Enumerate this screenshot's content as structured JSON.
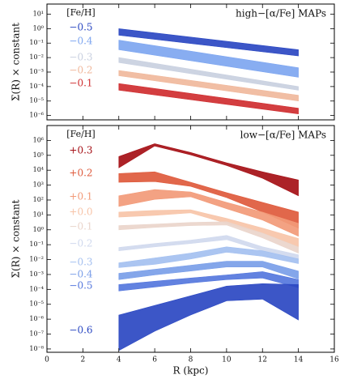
{
  "chart_data": [
    {
      "type": "band",
      "annotation": "high−[α/Fe] MAPs",
      "legend_title": "[Fe/H]",
      "ylabel": "Σ(R) × constant",
      "log_y": true,
      "xlim": [
        0,
        16
      ],
      "xticks": [
        0,
        2,
        4,
        6,
        8,
        10,
        12,
        14,
        16
      ],
      "ylim": [
        5e-07,
        50
      ],
      "yticks": [
        {
          "value": 1e-06,
          "label": "10⁻⁶"
        },
        {
          "value": 1e-05,
          "label": "10⁻⁵"
        },
        {
          "value": 0.0001,
          "label": "10⁻⁴"
        },
        {
          "value": 0.001,
          "label": "10⁻³"
        },
        {
          "value": 0.01,
          "label": "10⁻²"
        },
        {
          "value": 0.1,
          "label": "10⁻¹"
        },
        {
          "value": 1,
          "label": "10⁰"
        },
        {
          "value": 10,
          "label": "10¹"
        }
      ],
      "series": [
        {
          "name": "−0.5",
          "color": "#2b48c2",
          "x": [
            4,
            14
          ],
          "upper": [
            1.0,
            0.035
          ],
          "lower": [
            0.35,
            0.013
          ]
        },
        {
          "name": "−0.4",
          "color": "#7ea6f0",
          "x": [
            4,
            14
          ],
          "upper": [
            0.16,
            0.002
          ],
          "lower": [
            0.035,
            0.00044
          ]
        },
        {
          "name": "−0.3",
          "color": "#c9d0e0",
          "x": [
            4,
            14
          ],
          "upper": [
            0.01,
            0.0001
          ],
          "lower": [
            0.0045,
            5.6e-05
          ]
        },
        {
          "name": "−0.2",
          "color": "#f0b89c",
          "x": [
            4,
            14
          ],
          "upper": [
            0.0013,
            2.5e-05
          ],
          "lower": [
            0.00056,
            1e-05
          ]
        },
        {
          "name": "−0.1",
          "color": "#cf2e30",
          "x": [
            4,
            14
          ],
          "upper": [
            0.00016,
            3.2e-06
          ],
          "lower": [
            5.6e-05,
            1.3e-06
          ]
        }
      ]
    },
    {
      "type": "band",
      "annotation": "low−[α/Fe] MAPs",
      "legend_title": "[Fe/H]",
      "ylabel": "Σ(R) × constant",
      "xlabel": "R (kpc)",
      "log_y": true,
      "xlim": [
        0,
        16
      ],
      "xticks": [
        0,
        2,
        4,
        6,
        8,
        10,
        12,
        14,
        16
      ],
      "ylim": [
        6e-09,
        10000000.0
      ],
      "yticks": [
        {
          "value": 1e-08,
          "label": "10⁻⁸"
        },
        {
          "value": 1e-07,
          "label": "10⁻⁷"
        },
        {
          "value": 1e-06,
          "label": "10⁻⁶"
        },
        {
          "value": 1e-05,
          "label": "10⁻⁵"
        },
        {
          "value": 0.0001,
          "label": "10⁻⁴"
        },
        {
          "value": 0.001,
          "label": "10⁻³"
        },
        {
          "value": 0.01,
          "label": "10⁻²"
        },
        {
          "value": 0.1,
          "label": "10⁻¹"
        },
        {
          "value": 1,
          "label": "10⁰"
        },
        {
          "value": 10,
          "label": "10¹"
        },
        {
          "value": 100,
          "label": "10²"
        },
        {
          "value": 1000,
          "label": "10³"
        },
        {
          "value": 10000,
          "label": "10⁴"
        },
        {
          "value": 100000,
          "label": "10⁵"
        },
        {
          "value": 1000000,
          "label": "10⁶"
        }
      ],
      "series": [
        {
          "name": "+0.3",
          "color": "#a50f15",
          "x": [
            4,
            6,
            8,
            10,
            12,
            14
          ],
          "upper": [
            83000,
            600000,
            155000,
            31000,
            7800,
            2200
          ],
          "lower": [
            14500,
            420000,
            107000,
            21000,
            2900,
            190
          ]
        },
        {
          "name": "+0.2",
          "color": "#de5a3c",
          "x": [
            4,
            6,
            8,
            10,
            12,
            14
          ],
          "upper": [
            6000,
            7800,
            1550,
            310,
            69,
            15.5
          ],
          "lower": [
            1550,
            1740,
            830,
            145,
            15.5,
            1.3
          ]
        },
        {
          "name": "+0.1",
          "color": "#f29a78",
          "x": [
            4,
            6,
            8,
            10,
            12,
            14
          ],
          "upper": [
            190,
            500,
            350,
            69,
            15.5,
            2.7
          ],
          "lower": [
            37,
            110,
            165,
            26,
            4.5,
            0.37
          ]
        },
        {
          "name": "+0.0",
          "color": "#f7c4a8",
          "x": [
            4,
            6,
            8,
            10,
            12,
            14
          ],
          "upper": [
            15.5,
            20,
            22,
            5.8,
            1.3,
            0.26
          ],
          "lower": [
            7.2,
            9.3,
            13.8,
            2.7,
            0.6,
            0.072
          ]
        },
        {
          "name": "−0.1",
          "color": "#ead5cb",
          "x": [
            4,
            6,
            8,
            10,
            12,
            14
          ],
          "upper": [
            1.9,
            2.4,
            3.1,
            3.5,
            0.6,
            0.072
          ],
          "lower": [
            1.0,
            1.45,
            1.9,
            2.1,
            0.29,
            0.027
          ]
        },
        {
          "name": "−0.2",
          "color": "#d0d9ee",
          "x": [
            4,
            6,
            8,
            10,
            12,
            14
          ],
          "upper": [
            0.065,
            0.12,
            0.2,
            0.42,
            0.072,
            0.021
          ],
          "lower": [
            0.039,
            0.072,
            0.12,
            0.22,
            0.039,
            0.011
          ]
        },
        {
          "name": "−0.3",
          "color": "#a4c0f0",
          "x": [
            4,
            6,
            8,
            10,
            12,
            14
          ],
          "upper": [
            0.006,
            0.013,
            0.027,
            0.072,
            0.039,
            0.011
          ],
          "lower": [
            0.0029,
            0.0048,
            0.011,
            0.031,
            0.0166,
            0.0054
          ]
        },
        {
          "name": "−0.4",
          "color": "#7a9ee8",
          "x": [
            4,
            6,
            8,
            10,
            12,
            14
          ],
          "upper": [
            0.0012,
            0.0022,
            0.0042,
            0.0078,
            0.0078,
            0.0017
          ],
          "lower": [
            0.00045,
            0.00093,
            0.0017,
            0.0032,
            0.0032,
            0.0005
          ]
        },
        {
          "name": "−0.5",
          "color": "#5577dd",
          "x": [
            4,
            6,
            8,
            10,
            12,
            14
          ],
          "upper": [
            0.00021,
            0.00035,
            0.00058,
            0.00093,
            0.00155,
            0.00045
          ],
          "lower": [
            7.8e-05,
            0.000145,
            0.00027,
            0.00045,
            0.00058,
            0.00013
          ]
        },
        {
          "name": "−0.6",
          "color": "#2b48c2",
          "x": [
            4,
            6,
            8,
            10,
            12,
            14
          ],
          "upper": [
            1.9e-06,
            8.3e-06,
            3.7e-05,
            0.000166,
            0.00024,
            0.00021
          ],
          "lower": [
            7.8e-09,
            1.55e-07,
            1.9e-06,
            1.7e-05,
            2.2e-05,
            8.9e-07
          ]
        }
      ]
    }
  ]
}
